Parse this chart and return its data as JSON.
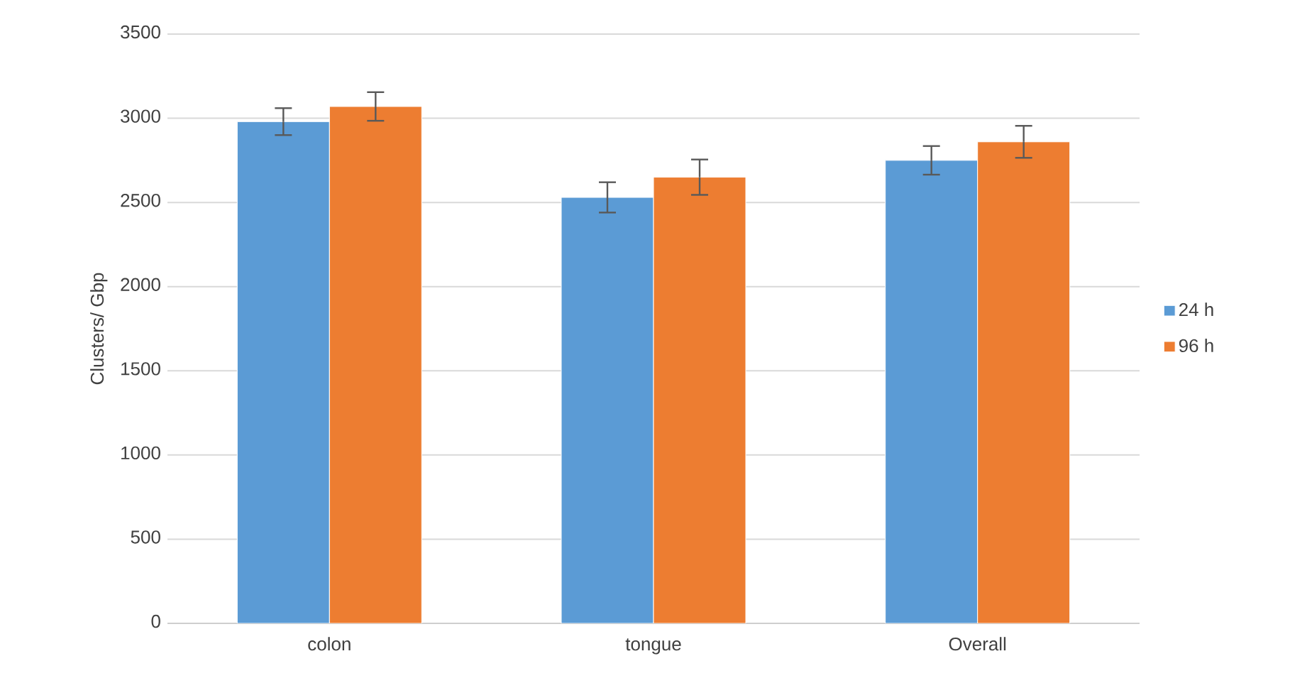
{
  "chart_data": {
    "type": "bar",
    "ylabel": "Clusters/ Gbp",
    "categories": [
      "colon",
      "tongue",
      "Overall"
    ],
    "series": [
      {
        "name": "24 h",
        "color": "#5b9bd5",
        "values": [
          2980,
          2530,
          2750
        ],
        "errors": [
          80,
          90,
          85
        ]
      },
      {
        "name": "96 h",
        "color": "#ed7d31",
        "values": [
          3070,
          2650,
          2860
        ],
        "errors": [
          85,
          105,
          95
        ]
      }
    ],
    "ylim": [
      0,
      3500
    ],
    "yticks": [
      0,
      500,
      1000,
      1500,
      2000,
      2500,
      3000,
      3500
    ],
    "grid": "y",
    "legend": "right"
  }
}
